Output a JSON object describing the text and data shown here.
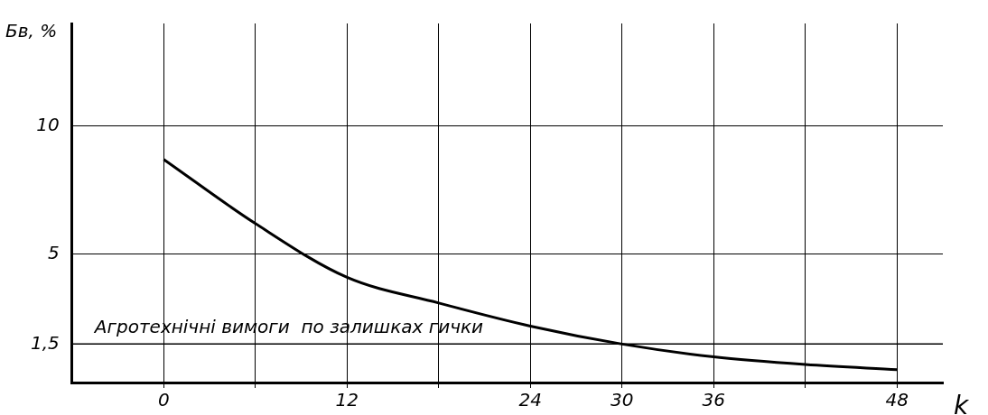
{
  "chart_data": {
    "type": "line",
    "xlabel": "k",
    "ylabel": "Бв, %",
    "x": [
      0,
      6,
      12,
      18,
      24,
      30,
      36,
      42,
      48
    ],
    "series": [
      {
        "color": "#000000",
        "values": [
          8.7,
          6.2,
          4.1,
          3.1,
          2.2,
          1.5,
          1.0,
          0.7,
          0.5
        ]
      }
    ],
    "xlim": [
      -6,
      51
    ],
    "xticks": [
      0,
      {
        "value": 6,
        "label": null
      },
      12,
      {
        "value": 18,
        "label": null
      },
      24,
      30,
      36,
      {
        "value": 42,
        "label": null
      },
      48
    ],
    "ylim": [
      0,
      14
    ],
    "yticks": [
      {
        "value": 1.5,
        "label": "1,5"
      },
      5,
      10
    ],
    "ref_lines": [
      {
        "axis": "y",
        "value": 1.5,
        "label": "Агротехнічні вимоги  по залишках гички",
        "color": "#000000"
      }
    ],
    "grid": true,
    "legend": false,
    "marker": "none",
    "line_style": "solid"
  }
}
